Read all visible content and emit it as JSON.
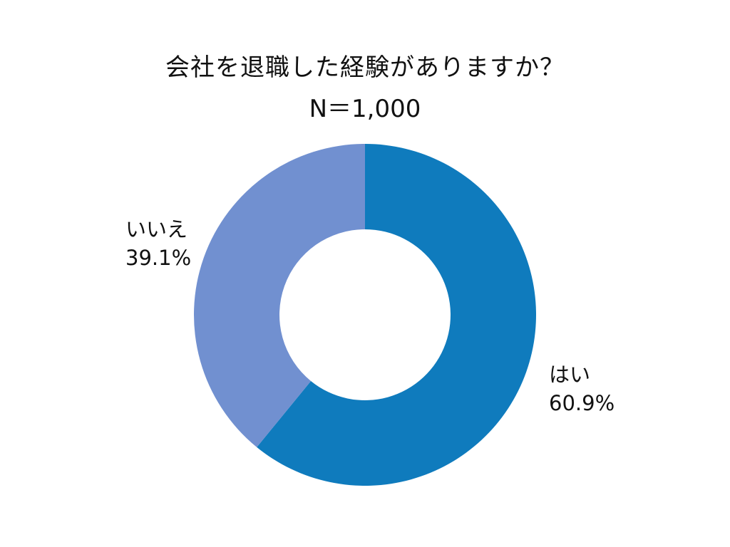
{
  "title": "会社を退職した経験がありますか？",
  "subtitle": "N＝1,000",
  "chart_data": {
    "type": "pie",
    "variant": "donut",
    "title": "会社を退職した経験がありますか？",
    "subtitle": "N＝1,000",
    "slices": [
      {
        "label": "はい",
        "value": 60.9,
        "value_label": "60.9%",
        "color": "#0f7bbd"
      },
      {
        "label": "いいえ",
        "value": 39.1,
        "value_label": "39.1%",
        "color": "#7190d0"
      }
    ],
    "start": "12 o'clock",
    "direction": "clockwise",
    "legend": "none"
  }
}
